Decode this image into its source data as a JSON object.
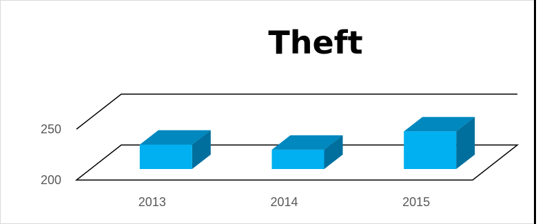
{
  "chart_data": {
    "type": "bar",
    "style": "3d",
    "title": "Theft",
    "categories": [
      "2013",
      "2014",
      "2015"
    ],
    "values": [
      224,
      219,
      237
    ],
    "ylim": [
      200,
      250
    ],
    "yticks": [
      "200",
      "250"
    ],
    "xlabel": "",
    "ylabel": "",
    "legend": "none",
    "grid": true
  },
  "colors": {
    "bar_front": "#00b0f0",
    "bar_top": "#0088bf",
    "bar_side": "#006f9e",
    "axis_line": "#000000",
    "tick_text": "#595959"
  }
}
